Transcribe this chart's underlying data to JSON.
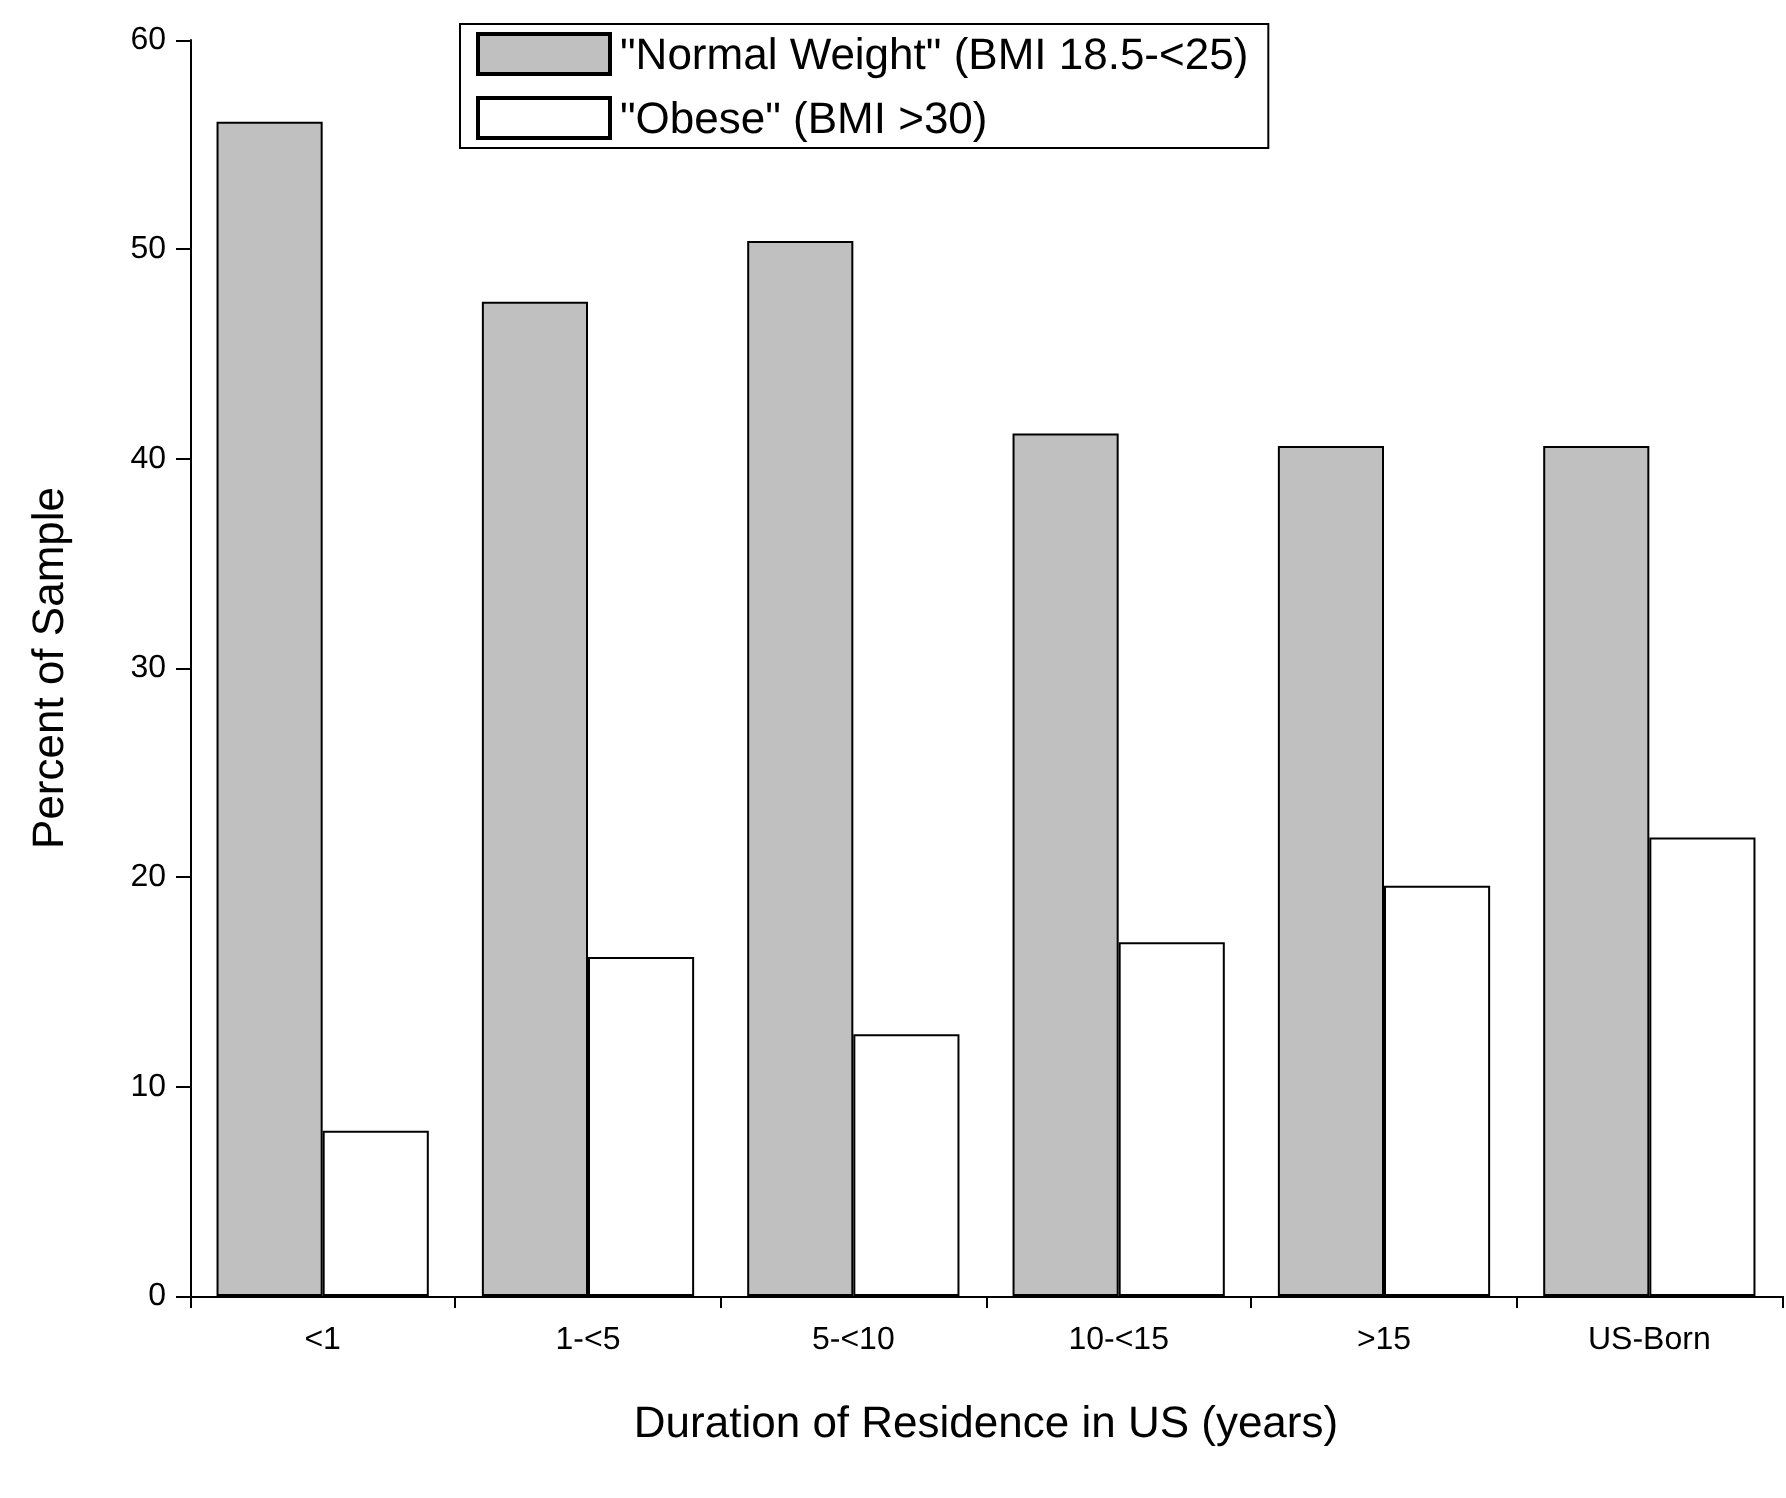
{
  "chart_data": {
    "type": "bar",
    "xlabel": "Duration of Residence in US (years)",
    "ylabel": "Percent of Sample",
    "categories": [
      "<1",
      "1-<5",
      "5-<10",
      "10-<15",
      ">15",
      "US-Born"
    ],
    "series": [
      {
        "name": "\"Normal Weight\" (BMI 18.5-<25)",
        "color": "#c0c0c0",
        "values": [
          56.1,
          47.5,
          50.4,
          41.2,
          40.6,
          40.6
        ]
      },
      {
        "name": "\"Obese\" (BMI >30)",
        "color": "#ffffff",
        "values": [
          7.9,
          16.2,
          12.5,
          16.9,
          19.6,
          21.9
        ]
      }
    ],
    "ylim": [
      0,
      60
    ],
    "yticks": [
      0,
      10,
      20,
      30,
      40,
      50,
      60
    ],
    "grid": false,
    "legend": "top"
  }
}
